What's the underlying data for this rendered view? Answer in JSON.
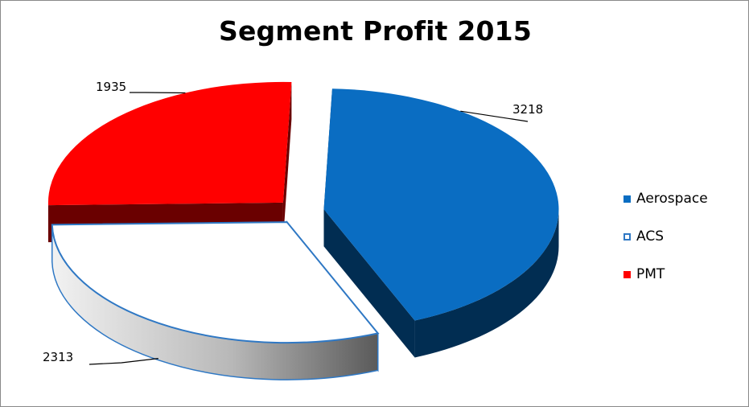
{
  "chart_data": {
    "type": "pie",
    "title": "Segment Profit 2015",
    "categories": [
      "Aerospace",
      "ACS",
      "PMT"
    ],
    "values": [
      3218,
      2313,
      1935
    ],
    "data_labels": [
      "3218",
      "2313",
      "1935"
    ],
    "legend": {
      "placement": "right",
      "entries": [
        "Aerospace",
        "ACS",
        "PMT"
      ]
    },
    "style": "3d-exploded"
  },
  "colors": {
    "aerospace_top": "#0a6dc2",
    "aerospace_side": "#012d52",
    "acs_top": "#ffffff",
    "acs_outline": "#2f78c4",
    "acs_side": "#9a9a9a",
    "pmt_top": "#ff0000",
    "pmt_side": "#6a0000",
    "frame": "#8a8a8a"
  }
}
